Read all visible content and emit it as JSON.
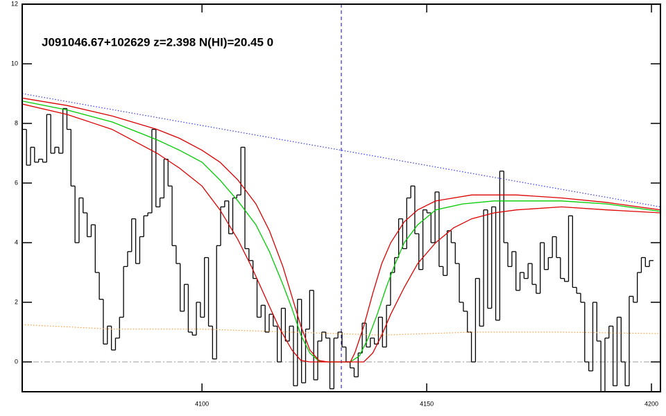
{
  "chart_data": {
    "type": "line",
    "title": "J091046.67+102629 z=2.398 N(HI)=20.45 0",
    "xlim": [
      4060,
      4202
    ],
    "ylim": [
      -1,
      12
    ],
    "xticks": [
      4100,
      4150,
      4200
    ],
    "yticks": [
      0,
      2,
      4,
      6,
      8,
      10,
      12
    ],
    "hline": 0,
    "hline_color": "#999999",
    "vline": 4131,
    "vline_color": "#0000cc",
    "series": [
      {
        "style": "step",
        "color": "#000000",
        "x": [
          4060.5,
          4061.4,
          4062.3,
          4063.2,
          4064.1,
          4065.0,
          4065.9,
          4066.8,
          4067.7,
          4068.6,
          4069.5,
          4070.4,
          4071.3,
          4072.2,
          4073.1,
          4074.0,
          4074.9,
          4075.8,
          4076.7,
          4077.6,
          4078.5,
          4079.4,
          4080.3,
          4081.2,
          4082.1,
          4083.0,
          4083.9,
          4084.8,
          4085.7,
          4086.6,
          4087.5,
          4088.4,
          4089.3,
          4090.2,
          4091.1,
          4092.0,
          4092.9,
          4093.8,
          4094.7,
          4095.6,
          4096.5,
          4097.4,
          4098.3,
          4099.2,
          4100.1,
          4101.0,
          4101.9,
          4102.8,
          4103.7,
          4104.6,
          4105.5,
          4106.4,
          4107.3,
          4108.2,
          4109.1,
          4110.0,
          4110.9,
          4111.8,
          4112.7,
          4113.6,
          4114.5,
          4115.4,
          4116.3,
          4117.2,
          4118.1,
          4119.0,
          4119.9,
          4120.8,
          4121.7,
          4122.6,
          4123.5,
          4124.4,
          4125.3,
          4126.2,
          4127.1,
          4128.0,
          4128.9,
          4129.8,
          4130.7,
          4131.6,
          4132.5,
          4133.4,
          4134.3,
          4135.2,
          4136.1,
          4137.0,
          4137.9,
          4138.8,
          4139.7,
          4140.6,
          4141.5,
          4142.4,
          4143.3,
          4144.2,
          4145.1,
          4146.0,
          4146.9,
          4147.8,
          4148.7,
          4149.6,
          4150.5,
          4151.4,
          4152.3,
          4153.2,
          4154.1,
          4155.0,
          4155.9,
          4156.8,
          4157.7,
          4158.6,
          4159.5,
          4160.4,
          4161.3,
          4162.2,
          4163.1,
          4164.0,
          4164.9,
          4165.8,
          4166.7,
          4167.6,
          4168.5,
          4169.4,
          4170.3,
          4171.2,
          4172.1,
          4173.0,
          4173.9,
          4174.8,
          4175.7,
          4176.6,
          4177.5,
          4178.4,
          4179.3,
          4180.2,
          4181.1,
          4182.0,
          4182.9,
          4183.8,
          4184.7,
          4185.6,
          4186.5,
          4187.4,
          4188.3,
          4189.2,
          4190.1,
          4191.0,
          4191.9,
          4192.8,
          4193.7,
          4194.6,
          4195.5,
          4196.4,
          4197.3,
          4198.2,
          4199.1,
          4200.0
        ],
        "values": [
          7.8,
          6.6,
          7.2,
          6.7,
          6.8,
          6.7,
          8.3,
          7.0,
          7.2,
          7.0,
          8.5,
          7.8,
          5.9,
          4.0,
          5.5,
          5.0,
          4.2,
          4.6,
          3.0,
          2.1,
          0.6,
          1.2,
          0.4,
          0.8,
          1.5,
          3.2,
          3.7,
          4.8,
          3.3,
          4.2,
          4.9,
          5.0,
          7.8,
          5.2,
          5.5,
          6.8,
          5.9,
          3.9,
          3.3,
          1.7,
          2.6,
          1.0,
          0.9,
          2.0,
          1.5,
          3.5,
          1.2,
          0.1,
          3.9,
          5.2,
          5.4,
          4.3,
          5.5,
          5.6,
          7.2,
          3.8,
          3.4,
          2.8,
          1.5,
          1.9,
          1.0,
          1.6,
          1.2,
          0.0,
          1.8,
          0.7,
          1.2,
          -0.8,
          2.1,
          -0.7,
          1.1,
          2.4,
          -0.6,
          0.7,
          1.0,
          0.8,
          -0.9,
          0.8,
          1.0,
          0.5,
          0.0,
          -0.2,
          -0.5,
          0.3,
          1.3,
          0.5,
          0.8,
          0.6,
          1.5,
          0.5,
          1.9,
          3.0,
          3.5,
          4.8,
          3.8,
          5.5,
          5.9,
          4.3,
          3.1,
          5.1,
          5.0,
          4.0,
          5.7,
          3.2,
          2.9,
          4.4,
          4.0,
          3.3,
          2.0,
          1.7,
          1.0,
          0.0,
          2.8,
          1.2,
          5.1,
          1.8,
          5.2,
          1.4,
          6.4,
          4.0,
          3.2,
          3.7,
          2.4,
          3.0,
          2.8,
          3.3,
          2.6,
          2.3,
          4.0,
          3.1,
          3.5,
          4.2,
          3.5,
          2.8,
          2.7,
          4.9,
          2.5,
          2.3,
          2.0,
          0.0,
          -0.3,
          2.0,
          0.7,
          -1.0,
          0.8,
          1.2,
          -0.8,
          1.5,
          0.0,
          -0.8,
          2.2,
          2.0,
          3.0,
          3.5,
          3.2,
          3.4
        ]
      },
      {
        "style": "dotted",
        "color": "#3333ff",
        "x": [
          4060,
          4202
        ],
        "values": [
          9.0,
          5.2
        ]
      },
      {
        "style": "dotted",
        "color": "#ff9933",
        "x": [
          4060,
          4080,
          4100,
          4120,
          4140,
          4160,
          4180,
          4202
        ],
        "values": [
          1.25,
          1.1,
          1.1,
          1.0,
          0.9,
          1.0,
          1.0,
          0.95
        ]
      },
      {
        "style": "solid",
        "color": "#00cc00",
        "x": [
          4060,
          4070,
          4080,
          4090,
          4095,
          4100,
          4104,
          4108,
          4112,
          4115,
          4118,
          4120,
          4122,
          4124,
          4126,
          4128,
          4133,
          4135,
          4137,
          4139,
          4141,
          4143,
          4145,
          4148,
          4152,
          4158,
          4165,
          4180,
          4190,
          4202
        ],
        "values": [
          8.75,
          8.45,
          8.05,
          7.45,
          7.1,
          6.7,
          6.1,
          5.4,
          4.6,
          3.7,
          2.6,
          1.8,
          0.9,
          0.3,
          0.03,
          0,
          0,
          0.2,
          0.8,
          1.6,
          2.5,
          3.3,
          4.0,
          4.6,
          5.1,
          5.3,
          5.4,
          5.4,
          5.3,
          5.05
        ]
      },
      {
        "style": "solid",
        "color": "#dd0000",
        "x": [
          4060,
          4070,
          4080,
          4090,
          4095,
          4100,
          4104,
          4108,
          4112,
          4115,
          4118,
          4120,
          4122,
          4124,
          4126,
          4128,
          4133,
          4134,
          4136,
          4138,
          4140,
          4142,
          4145,
          4148,
          4152,
          4160,
          4170,
          4180,
          4190,
          4202
        ],
        "values": [
          8.85,
          8.6,
          8.25,
          7.8,
          7.5,
          7.1,
          6.7,
          6.1,
          5.3,
          4.4,
          3.2,
          2.2,
          1.2,
          0.4,
          0.05,
          0,
          0,
          0.3,
          1.2,
          2.3,
          3.3,
          4.0,
          4.7,
          5.1,
          5.4,
          5.6,
          5.6,
          5.5,
          5.35,
          5.1
        ]
      },
      {
        "style": "solid",
        "color": "#dd0000",
        "x": [
          4060,
          4070,
          4080,
          4090,
          4095,
          4100,
          4104,
          4108,
          4111,
          4114,
          4117,
          4120,
          4122,
          4124,
          4136,
          4138,
          4140,
          4142,
          4145,
          4148,
          4152,
          4156,
          4160,
          4165,
          4170,
          4180,
          4190,
          4202
        ],
        "values": [
          8.65,
          8.3,
          7.8,
          7.0,
          6.5,
          5.9,
          5.1,
          4.1,
          3.2,
          2.2,
          1.2,
          0.4,
          0.05,
          0,
          0,
          0.3,
          0.9,
          1.6,
          2.5,
          3.3,
          4.0,
          4.5,
          4.8,
          5.0,
          5.1,
          5.2,
          5.1,
          5.0
        ]
      }
    ]
  }
}
